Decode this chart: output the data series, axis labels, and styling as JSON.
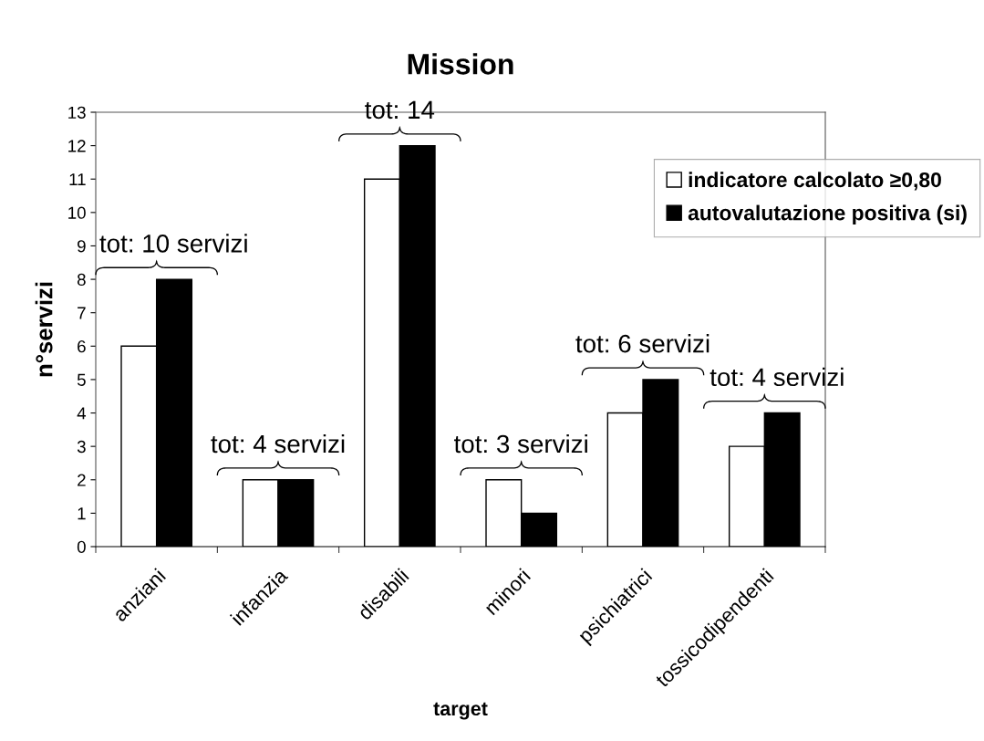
{
  "chart_data": {
    "type": "bar",
    "title": "Mission",
    "xlabel": "target",
    "ylabel": "n°servizi",
    "categories": [
      "anziani",
      "infanzia",
      "disabili",
      "minori",
      "psichiatrici",
      "tossicodipendenti"
    ],
    "series": [
      {
        "name": "indicatore calcolato ≥0,80",
        "color": "#ffffff",
        "values": [
          6,
          2,
          11,
          2,
          4,
          3
        ]
      },
      {
        "name": "autovalutazione positiva (si)",
        "color": "#000000",
        "values": [
          8,
          2,
          12,
          1,
          5,
          4
        ]
      }
    ],
    "ylim": [
      0,
      13
    ],
    "yticks": [
      0,
      1,
      2,
      3,
      4,
      5,
      6,
      7,
      8,
      9,
      10,
      11,
      12,
      13
    ],
    "legend": "top right",
    "annotations": [
      "tot: 10 servizi",
      "tot: 4 servizi",
      "tot: 14",
      "tot: 3 servizi",
      "tot: 6 servizi",
      "tot: 4 servizi"
    ]
  }
}
